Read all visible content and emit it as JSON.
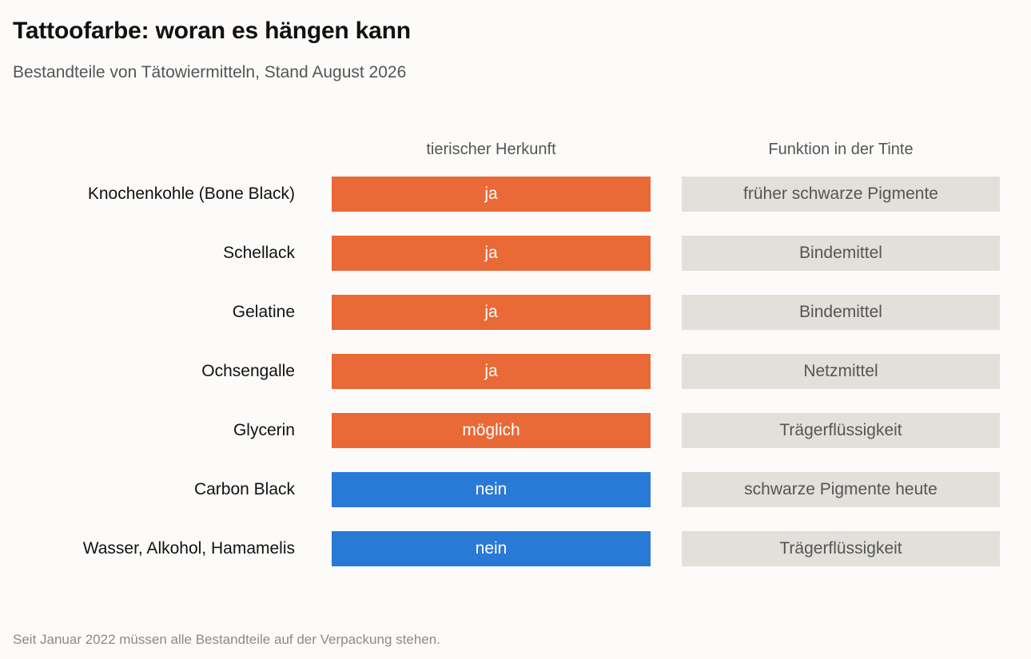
{
  "title": "Tattoofarbe: woran es hängen kann",
  "subtitle": "Bestandteile von Tätowiermitteln, Stand August 2026",
  "footnote": "Seit Januar 2022 müssen alle Bestandteile auf der Verpackung stehen.",
  "colors": {
    "animal": "#e96937",
    "not_animal": "#2979d6",
    "function_bg": "#e2e0da"
  },
  "chart_data": {
    "type": "table",
    "columns": [
      "tierischer Herkunft",
      "Funktion in der Tinte"
    ],
    "rows": [
      {
        "ingredient": "Knochenkohle (Bone Black)",
        "animal_origin": "ja",
        "function": "früher schwarze Pigmente"
      },
      {
        "ingredient": "Schellack",
        "animal_origin": "ja",
        "function": "Bindemittel"
      },
      {
        "ingredient": "Gelatine",
        "animal_origin": "ja",
        "function": "Bindemittel"
      },
      {
        "ingredient": "Ochsengalle",
        "animal_origin": "ja",
        "function": "Netzmittel"
      },
      {
        "ingredient": "Glycerin",
        "animal_origin": "möglich",
        "function": "Trägerflüssigkeit"
      },
      {
        "ingredient": "Carbon Black",
        "animal_origin": "nein",
        "function": "schwarze Pigmente heute"
      },
      {
        "ingredient": "Wasser, Alkohol, Hamamelis",
        "animal_origin": "nein",
        "function": "Trägerflüssigkeit"
      }
    ]
  }
}
